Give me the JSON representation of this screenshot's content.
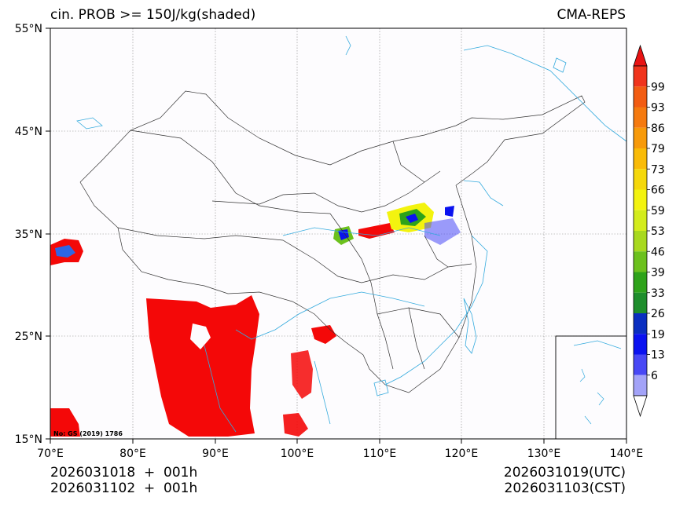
{
  "header": {
    "title": "cin. PROB >= 150J/kg(shaded)",
    "model": "CMA-REPS"
  },
  "axes": {
    "lat_labels": [
      "55°N",
      "45°N",
      "35°N",
      "25°N",
      "15°N"
    ],
    "lon_labels": [
      "70°E",
      "80°E",
      "90°E",
      "100°E",
      "110°E",
      "120°E",
      "130°E",
      "140°E"
    ]
  },
  "colorbar": {
    "labels": [
      "99",
      "93",
      "86",
      "79",
      "73",
      "66",
      "59",
      "53",
      "46",
      "39",
      "33",
      "26",
      "19",
      "13",
      "6"
    ],
    "colors": [
      "#f0341c",
      "#f25c12",
      "#f57a0f",
      "#f79a0a",
      "#f9bb07",
      "#f5d80a",
      "#f3f30f",
      "#d3ec1c",
      "#a8d91e",
      "#6cc11d",
      "#2ea31a",
      "#1e8e2c",
      "#0a2ec0",
      "#0a12f0",
      "#4848f5",
      "#a3a3f8"
    ],
    "top_arrow_color": "#e81313",
    "bottom_arrow_color": "#ffffff"
  },
  "stamp": "No: GS (2019) 1786",
  "footer": {
    "init_utc": "2026031018  +  001h",
    "init_cst": "2026031102  +  001h",
    "valid_utc": "2026031019(UTC)",
    "valid_cst": "2026031103(CST)"
  },
  "legend_colors": {
    "border_line": "#333333",
    "river_line": "#33aadd",
    "grid_line": "#888888",
    "shade_high": "#f40808"
  }
}
